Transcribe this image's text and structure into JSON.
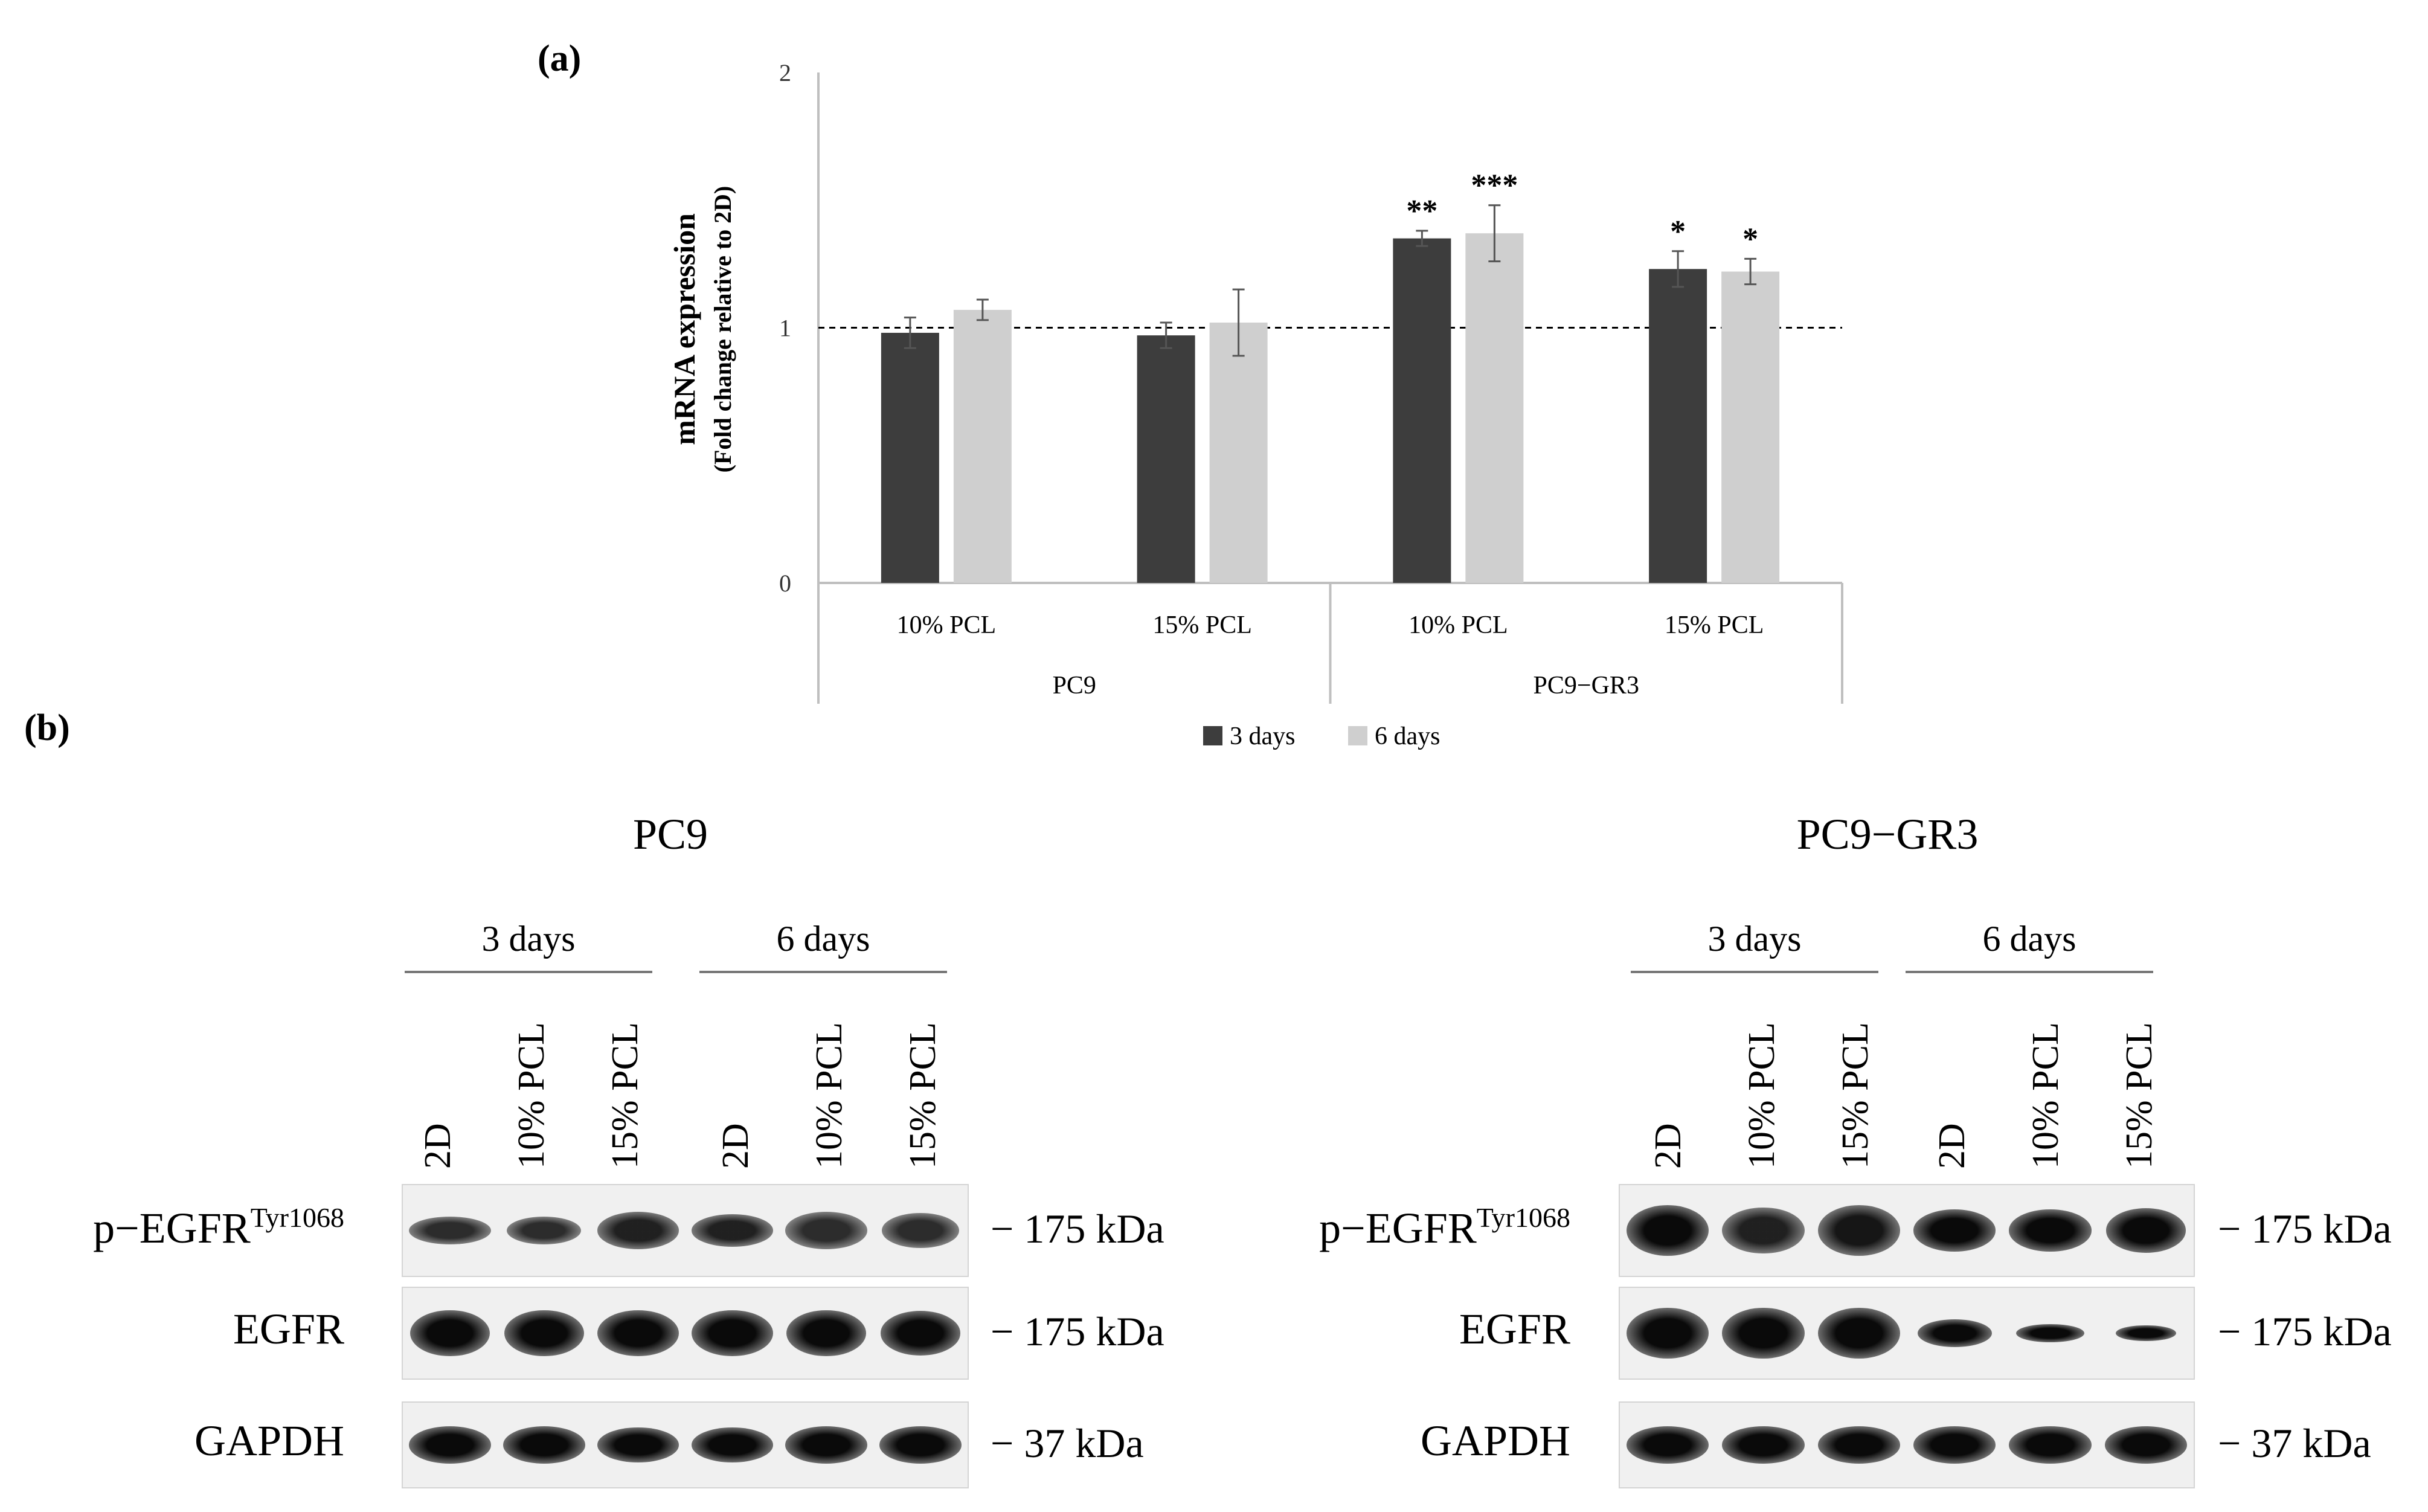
{
  "panel_a_label": "(a)",
  "panel_b_label": "(b)",
  "chart_data": {
    "type": "bar",
    "ylabel": "mRNA expression",
    "ylabel_sub": "(Fold change relative to 2D)",
    "ylim": [
      0,
      2
    ],
    "yticks": [
      "0",
      "1",
      "2"
    ],
    "reference_line": 1,
    "groups": [
      {
        "name": "PC9",
        "categories": [
          "10% PCL",
          "15% PCL"
        ]
      },
      {
        "name": "PC9−GR3",
        "categories": [
          "10% PCL",
          "15% PCL"
        ]
      }
    ],
    "series": [
      {
        "name": "3 days",
        "color": "#3d3d3d",
        "values": [
          0.98,
          0.97,
          1.35,
          1.23
        ],
        "errors": [
          0.06,
          0.05,
          0.03,
          0.07
        ],
        "annotations": [
          "",
          "",
          "**",
          "*"
        ]
      },
      {
        "name": "6 days",
        "color": "#cfcfcf",
        "values": [
          1.07,
          1.02,
          1.37,
          1.22
        ],
        "errors": [
          0.04,
          0.13,
          0.11,
          0.05
        ],
        "annotations": [
          "",
          "",
          "***",
          "*"
        ]
      }
    ],
    "legend_position": "bottom"
  },
  "blots": [
    {
      "title": "PC9",
      "time_groups": [
        "3 days",
        "6 days"
      ],
      "lanes": [
        "2D",
        "10% PCL",
        "15% PCL",
        "2D",
        "10% PCL",
        "15% PCL"
      ],
      "rows": [
        {
          "label": "p−EGFR",
          "superscript": "Tyr1068",
          "marker": "− 175 kDa"
        },
        {
          "label": "EGFR",
          "superscript": "",
          "marker": "− 175 kDa"
        },
        {
          "label": "GAPDH",
          "superscript": "",
          "marker": "− 37 kDa"
        }
      ]
    },
    {
      "title": "PC9−GR3",
      "time_groups": [
        "3 days",
        "6 days"
      ],
      "lanes": [
        "2D",
        "10% PCL",
        "15% PCL",
        "2D",
        "10% PCL",
        "15% PCL"
      ],
      "rows": [
        {
          "label": "p−EGFR",
          "superscript": "Tyr1068",
          "marker": "− 175 kDa"
        },
        {
          "label": "EGFR",
          "superscript": "",
          "marker": "− 175 kDa"
        },
        {
          "label": "GAPDH",
          "superscript": "",
          "marker": "− 37 kDa"
        }
      ]
    }
  ]
}
